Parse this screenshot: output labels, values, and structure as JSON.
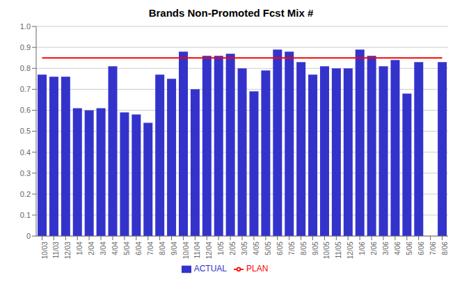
{
  "chart_data": {
    "type": "bar",
    "title": "Brands Non-Promoted Fcst Mix #",
    "categories": [
      "10/03",
      "11/03",
      "12/03",
      "1/04",
      "2/04",
      "3/04",
      "4/04",
      "5/04",
      "6/04",
      "7/04",
      "8/04",
      "9/04",
      "10/04",
      "11/04",
      "12/04",
      "1/05",
      "2/05",
      "3/05",
      "4/05",
      "5/05",
      "6/05",
      "7/05",
      "8/05",
      "9/05",
      "10/05",
      "11/05",
      "12/05",
      "1/06",
      "2/06",
      "3/06",
      "4/06",
      "5/06",
      "6/06",
      "7/06",
      "8/06"
    ],
    "series": [
      {
        "name": "ACTUAL",
        "type": "bar",
        "color": "#3333cc",
        "values": [
          0.77,
          0.76,
          0.76,
          0.61,
          0.6,
          0.61,
          0.81,
          0.59,
          0.58,
          0.54,
          0.77,
          0.75,
          0.88,
          0.7,
          0.86,
          0.86,
          0.87,
          0.8,
          0.69,
          0.79,
          0.89,
          0.88,
          0.83,
          0.77,
          0.81,
          0.8,
          0.8,
          0.89,
          0.86,
          0.81,
          0.84,
          0.68,
          0.83,
          0.0,
          0.83
        ]
      },
      {
        "name": "PLAN",
        "type": "line",
        "color": "#ff0000",
        "values": [
          0.85,
          0.85,
          0.85,
          0.85,
          0.85,
          0.85,
          0.85,
          0.85,
          0.85,
          0.85,
          0.85,
          0.85,
          0.85,
          0.85,
          0.85,
          0.85,
          0.85,
          0.85,
          0.85,
          0.85,
          0.85,
          0.85,
          0.85,
          0.85,
          0.85,
          0.85,
          0.85,
          0.85,
          0.85,
          0.85,
          0.85,
          0.85,
          0.85,
          0.85,
          0.85
        ]
      }
    ],
    "ylim": [
      0,
      1.0
    ],
    "yticks": [
      0,
      0.1,
      0.2,
      0.3,
      0.4,
      0.5,
      0.6,
      0.7,
      0.8,
      0.9,
      {
        "value": 1.0,
        "label": "1.0"
      }
    ],
    "grid": true,
    "legend": "bottom"
  }
}
